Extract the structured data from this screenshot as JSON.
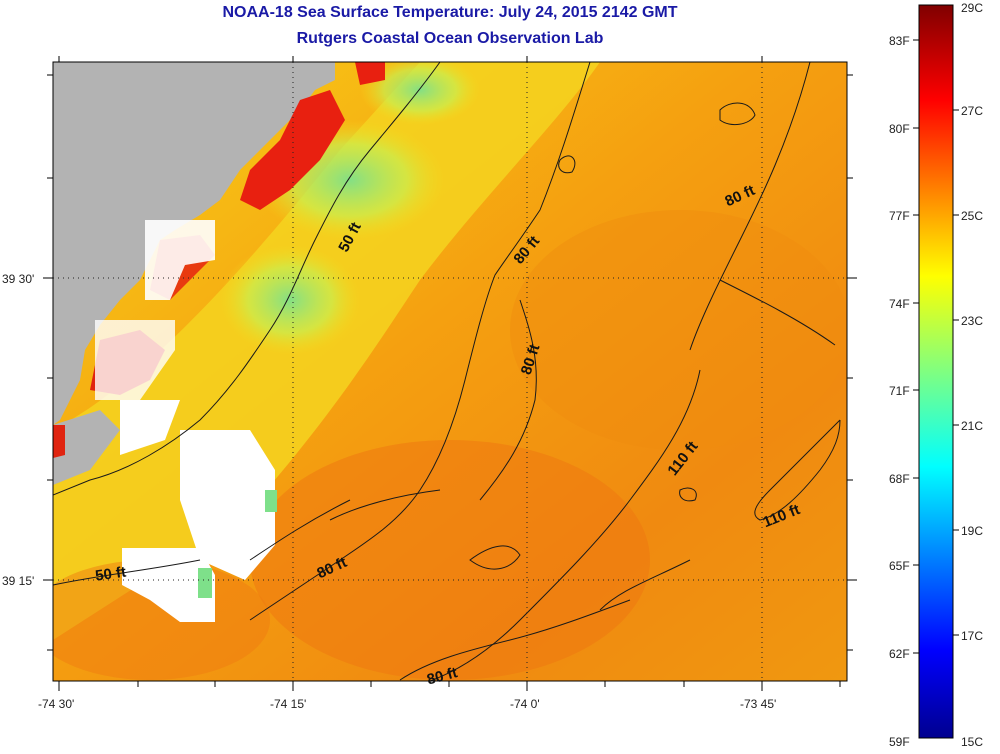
{
  "title": "NOAA-18 Sea Surface Temperature:  July 24, 2015 2142 GMT",
  "subtitle": "Rutgers Coastal Ocean Observation Lab",
  "colors": {
    "land": "#b3b3b3",
    "nodata": "#ffffff",
    "contour": "#1a1a1a",
    "title": "#1a1aa6"
  },
  "map": {
    "lon_labels": [
      "-74 30'",
      "-74 15'",
      "-74 0'",
      "-73 45'"
    ],
    "lat_labels": [
      "39 30'",
      "39 15'"
    ],
    "contour_labels": [
      "50 ft",
      "50 ft",
      "80 ft",
      "80 ft",
      "80 ft",
      "80 ft",
      "80 ft",
      "110 ft",
      "110 ft"
    ]
  },
  "colorbar": {
    "fahrenheit": [
      "83F",
      "80F",
      "77F",
      "74F",
      "71F",
      "68F",
      "65F",
      "62F",
      "59F"
    ],
    "celsius": [
      "29C",
      "27C",
      "25C",
      "23C",
      "21C",
      "19C",
      "17C",
      "15C"
    ],
    "range_c": [
      15,
      29
    ]
  }
}
